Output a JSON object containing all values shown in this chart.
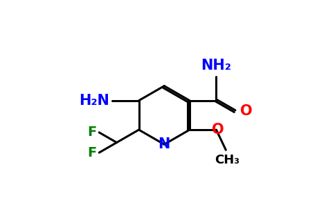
{
  "bg_color": "#ffffff",
  "bond_color": "#000000",
  "N_color": "#0000ff",
  "O_color": "#ff0000",
  "F_color": "#008000",
  "NH2_carboxamide": "NH₂",
  "NH2_amino": "H₂N",
  "N_label": "N",
  "O_carbonyl": "O",
  "O_methoxy": "O",
  "CH3_label": "CH₃",
  "F1_label": "F",
  "F2_label": "F",
  "figsize": [
    4.84,
    3.0
  ],
  "dpi": 100
}
